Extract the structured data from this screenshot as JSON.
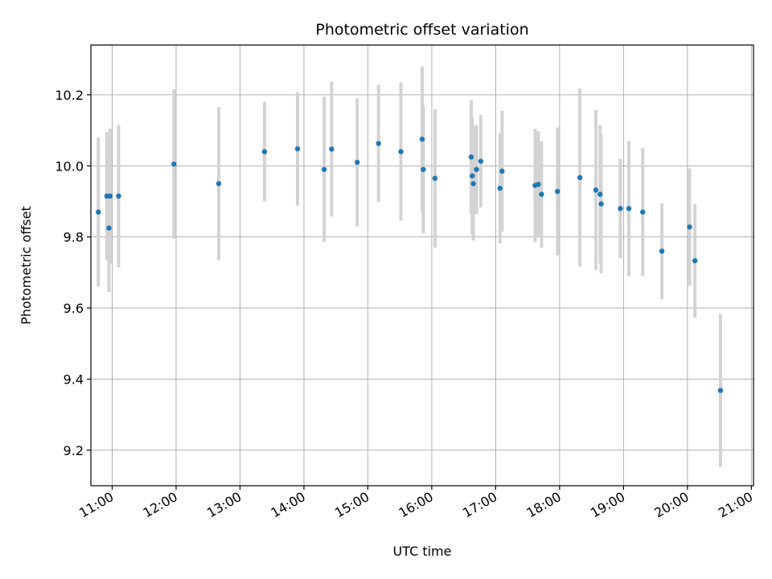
{
  "chart_data": {
    "type": "scatter",
    "title": "Photometric offset variation",
    "xlabel": "UTC time",
    "ylabel": "Photometric offset",
    "xlim": [
      "10:40",
      "21:02"
    ],
    "ylim": [
      9.1,
      10.34
    ],
    "x_ticks": [
      "11:00",
      "12:00",
      "13:00",
      "14:00",
      "15:00",
      "16:00",
      "17:00",
      "18:00",
      "19:00",
      "20:00",
      "21:00"
    ],
    "y_ticks": [
      9.2,
      9.4,
      9.6,
      9.8,
      10.0,
      10.2
    ],
    "grid": true,
    "colors": {
      "point": "#1f77b4",
      "errorbar": "#d3d3d3",
      "grid": "#b0b0b0"
    },
    "points": [
      {
        "x": "10:47",
        "y": 9.87,
        "err": 0.21
      },
      {
        "x": "10:55",
        "y": 9.915,
        "err": 0.18
      },
      {
        "x": "10:57",
        "y": 9.825,
        "err": 0.18
      },
      {
        "x": "10:58",
        "y": 9.915,
        "err": 0.19
      },
      {
        "x": "11:06",
        "y": 9.915,
        "err": 0.2
      },
      {
        "x": "11:58",
        "y": 10.005,
        "err": 0.21
      },
      {
        "x": "12:40",
        "y": 9.95,
        "err": 0.215
      },
      {
        "x": "13:23",
        "y": 10.04,
        "err": 0.14
      },
      {
        "x": "13:54",
        "y": 10.048,
        "err": 0.16
      },
      {
        "x": "14:19",
        "y": 9.99,
        "err": 0.205
      },
      {
        "x": "14:26",
        "y": 10.047,
        "err": 0.19
      },
      {
        "x": "14:50",
        "y": 10.01,
        "err": 0.18
      },
      {
        "x": "15:10",
        "y": 10.063,
        "err": 0.165
      },
      {
        "x": "15:31",
        "y": 10.04,
        "err": 0.195
      },
      {
        "x": "15:51",
        "y": 10.075,
        "err": 0.205
      },
      {
        "x": "15:52",
        "y": 9.99,
        "err": 0.18
      },
      {
        "x": "16:03",
        "y": 9.965,
        "err": 0.195
      },
      {
        "x": "16:37",
        "y": 10.025,
        "err": 0.16
      },
      {
        "x": "16:38",
        "y": 9.972,
        "err": 0.165
      },
      {
        "x": "16:39",
        "y": 9.95,
        "err": 0.16
      },
      {
        "x": "16:42",
        "y": 9.99,
        "err": 0.125
      },
      {
        "x": "16:46",
        "y": 10.013,
        "err": 0.13
      },
      {
        "x": "17:04",
        "y": 9.937,
        "err": 0.155
      },
      {
        "x": "17:06",
        "y": 9.985,
        "err": 0.17
      },
      {
        "x": "17:37",
        "y": 9.945,
        "err": 0.16
      },
      {
        "x": "17:40",
        "y": 9.948,
        "err": 0.15
      },
      {
        "x": "17:43",
        "y": 9.92,
        "err": 0.15
      },
      {
        "x": "17:58",
        "y": 9.928,
        "err": 0.18
      },
      {
        "x": "18:19",
        "y": 9.967,
        "err": 0.25
      },
      {
        "x": "18:34",
        "y": 9.932,
        "err": 0.225
      },
      {
        "x": "18:38",
        "y": 9.92,
        "err": 0.195
      },
      {
        "x": "18:39",
        "y": 9.893,
        "err": 0.195
      },
      {
        "x": "18:57",
        "y": 9.88,
        "err": 0.14
      },
      {
        "x": "19:05",
        "y": 9.88,
        "err": 0.19
      },
      {
        "x": "19:18",
        "y": 9.87,
        "err": 0.18
      },
      {
        "x": "19:36",
        "y": 9.76,
        "err": 0.135
      },
      {
        "x": "20:02",
        "y": 9.828,
        "err": 0.165
      },
      {
        "x": "20:07",
        "y": 9.733,
        "err": 0.16
      },
      {
        "x": "20:31",
        "y": 9.368,
        "err": 0.215
      }
    ]
  }
}
